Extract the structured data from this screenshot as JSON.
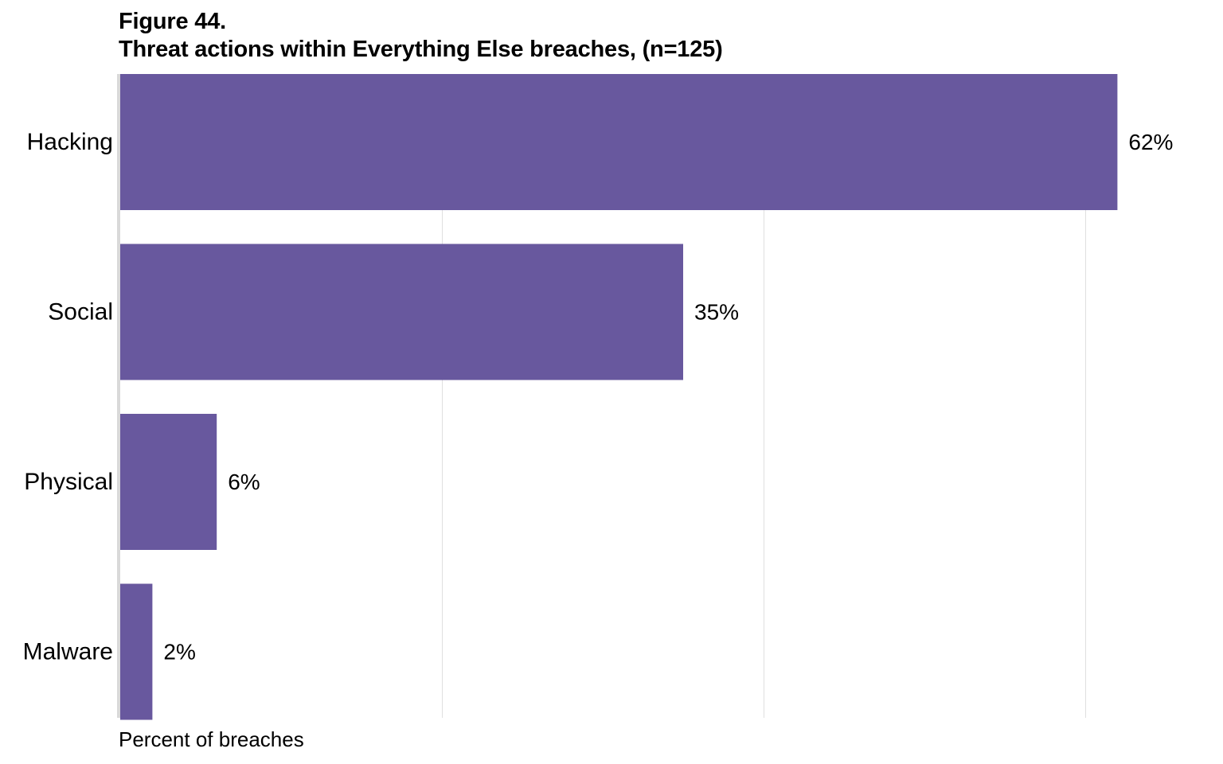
{
  "chart_data": {
    "type": "bar",
    "orientation": "horizontal",
    "figure_number": "Figure 44.",
    "title": "Threat actions within Everything Else breaches, (n=125)",
    "xlabel": "Percent of breaches",
    "ylabel": "",
    "categories": [
      "Hacking",
      "Social",
      "Physical",
      "Malware"
    ],
    "values": [
      62,
      35,
      6,
      2
    ],
    "value_labels": [
      "62%",
      "35%",
      "6%",
      "2%"
    ],
    "xlim": [
      0,
      60
    ],
    "gridlines": [
      20,
      40,
      60
    ],
    "grid": true,
    "legend": "none",
    "bar_color": "#68589e",
    "gridline_color": "#e0e0e0",
    "axis_color": "#d9d9d9"
  }
}
